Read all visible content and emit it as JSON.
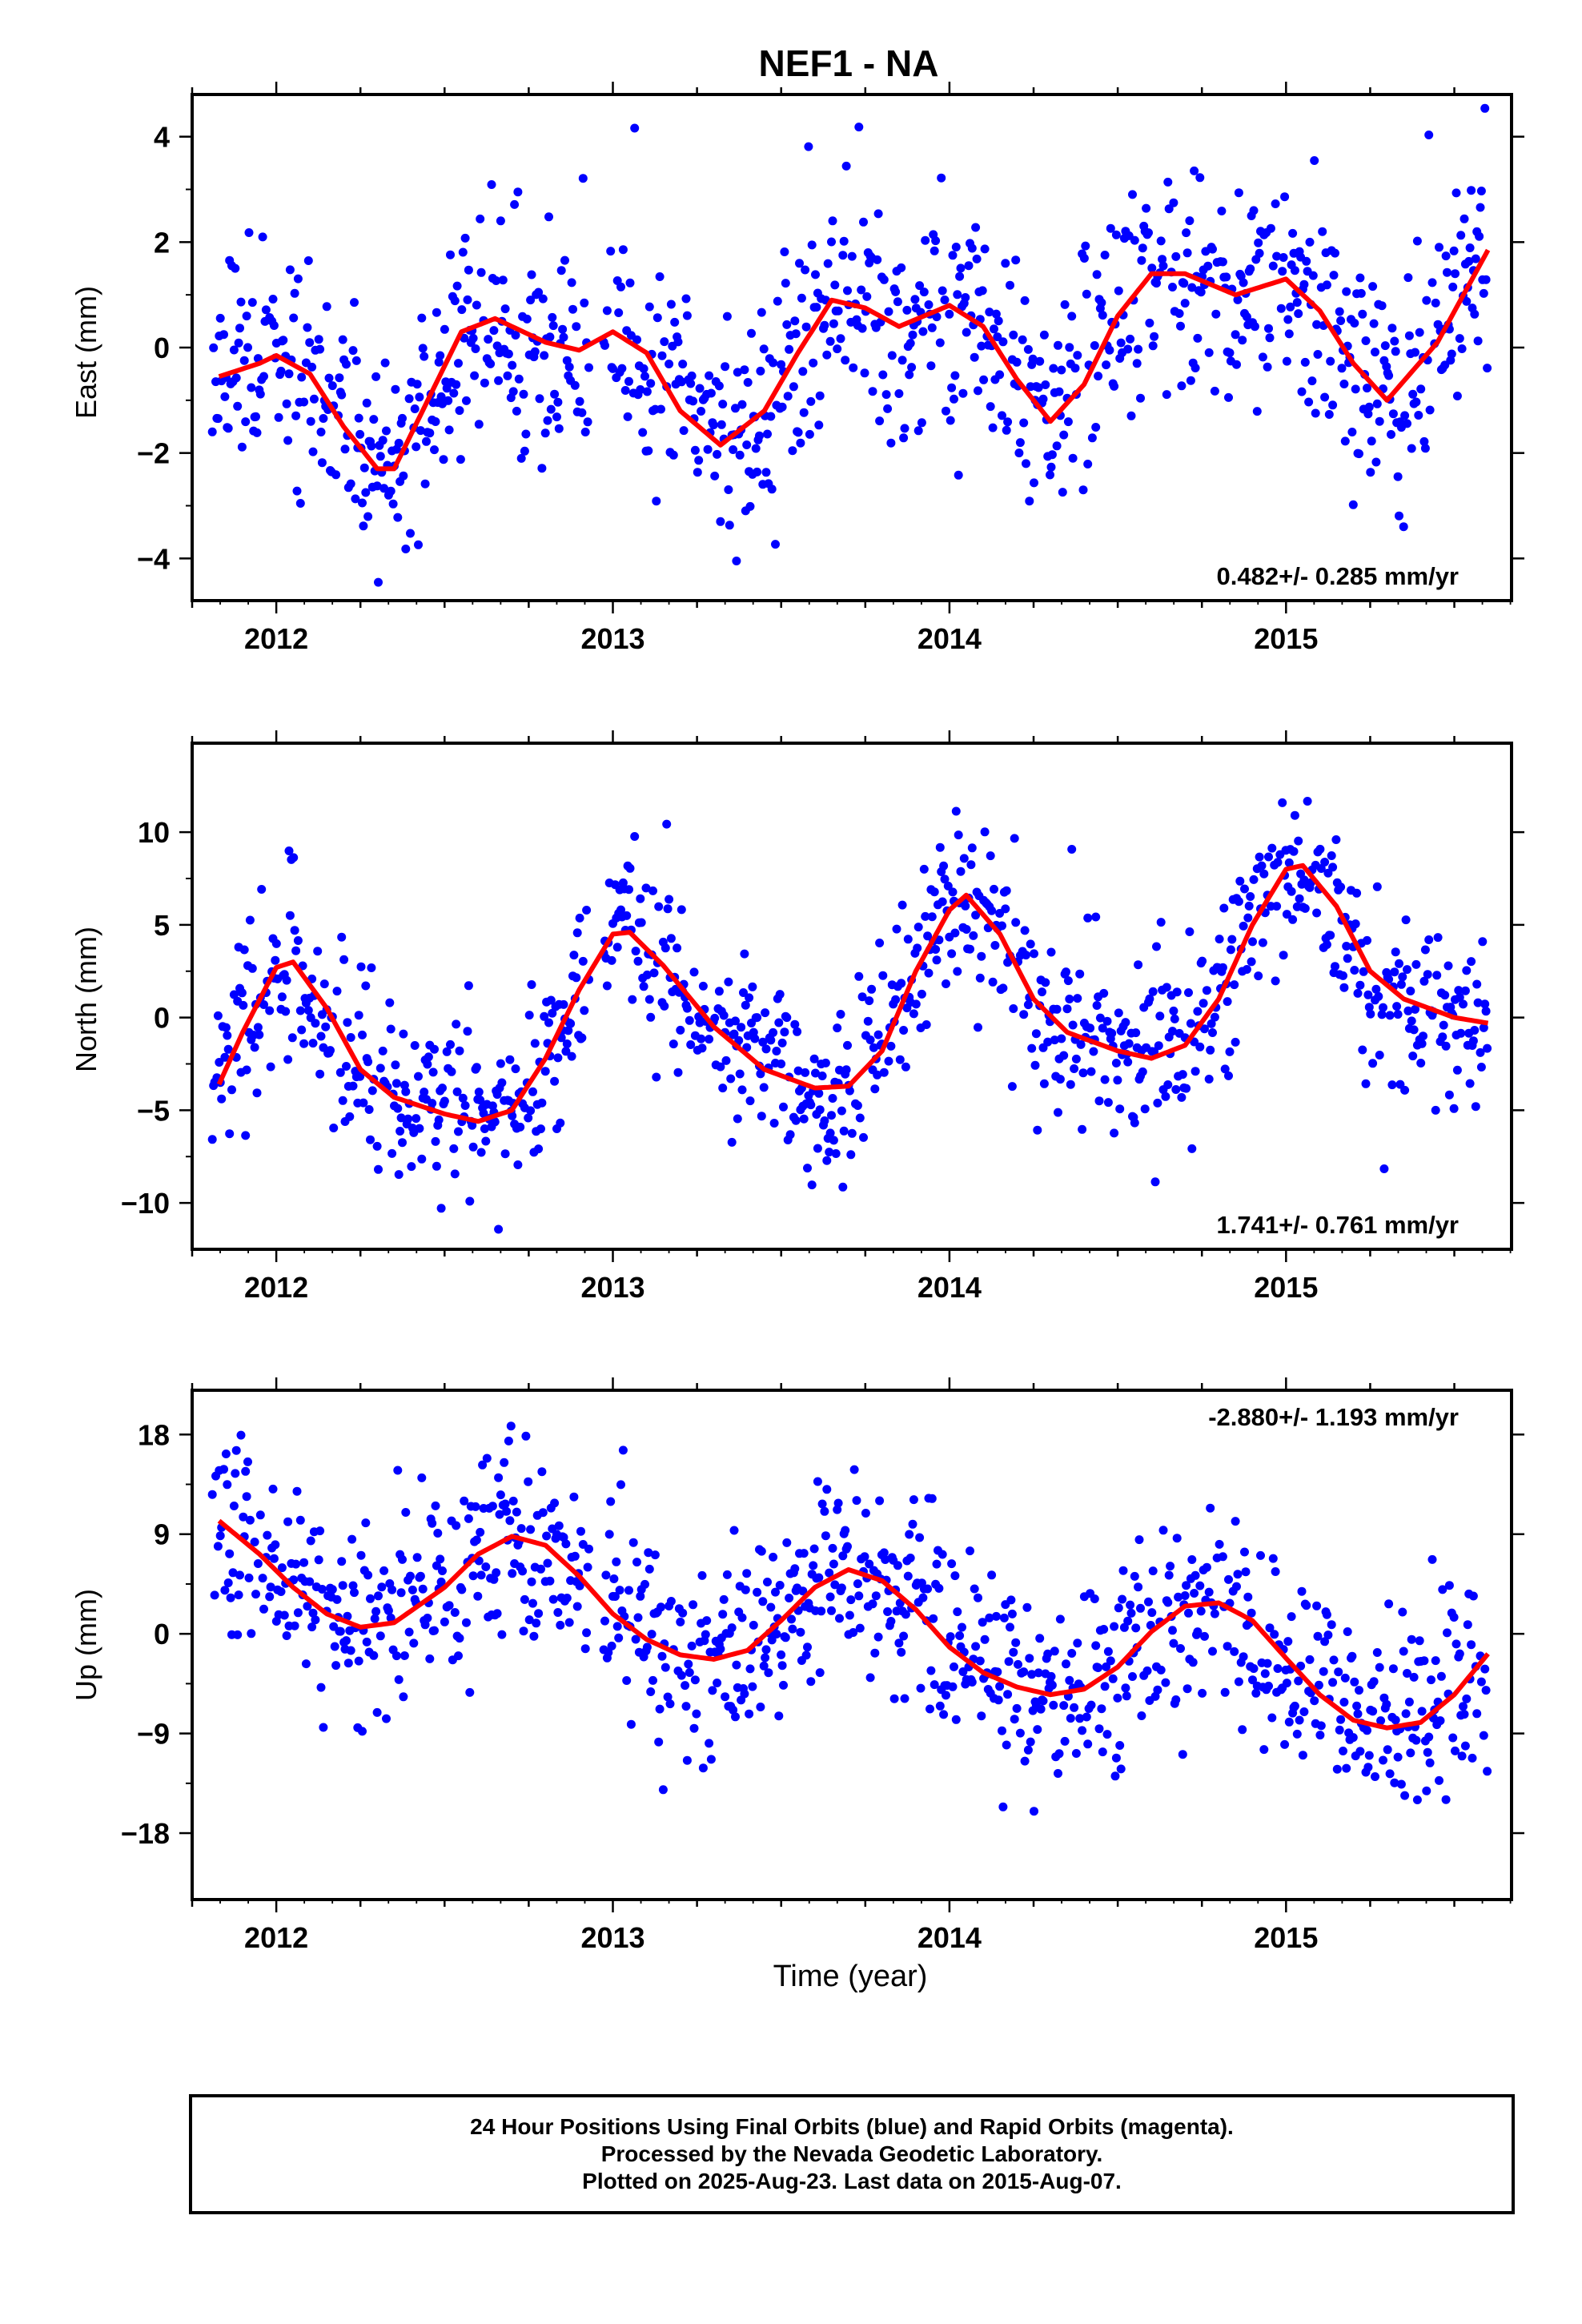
{
  "title": "NEF1 - NA",
  "xlabel": "Time (year)",
  "footer": {
    "line1": "24 Hour Positions Using Final Orbits (blue) and Rapid Orbits (magenta).",
    "line2": "Processed by the Nevada Geodetic Laboratory.",
    "line3": "Plotted on 2025-Aug-23. Last data on 2015-Aug-07."
  },
  "colors": {
    "points": "#0000ff",
    "model": "#ff0000",
    "frame": "#000000"
  },
  "chart_data": [
    {
      "type": "scatter",
      "name": "east",
      "ylabel": "East (mm)",
      "rate_label": "0.482+/- 0.285 mm/yr",
      "xlim": [
        2011.75,
        2015.67
      ],
      "ylim": [
        -4.8,
        4.8
      ],
      "xticks": [
        "2012",
        "2013",
        "2014",
        "2015"
      ],
      "yticks": [
        "4",
        "2",
        "0",
        "−2",
        "−4"
      ],
      "ytick_values": [
        4,
        2,
        0,
        -2,
        -4
      ],
      "trend_rate": 0.482,
      "model_curve": {
        "x": [
          2011.83,
          2011.95,
          2012.0,
          2012.1,
          2012.2,
          2012.3,
          2012.35,
          2012.45,
          2012.55,
          2012.65,
          2012.8,
          2012.9,
          2013.0,
          2013.1,
          2013.2,
          2013.32,
          2013.45,
          2013.55,
          2013.65,
          2013.75,
          2013.85,
          2014.0,
          2014.1,
          2014.2,
          2014.3,
          2014.4,
          2014.5,
          2014.6,
          2014.7,
          2014.85,
          2015.0,
          2015.1,
          2015.2,
          2015.3,
          2015.45,
          2015.6
        ],
        "y": [
          -0.55,
          -0.3,
          -0.15,
          -0.5,
          -1.5,
          -2.3,
          -2.3,
          -1.0,
          0.3,
          0.55,
          0.1,
          -0.05,
          0.3,
          -0.1,
          -1.2,
          -1.85,
          -1.2,
          -0.1,
          0.9,
          0.75,
          0.4,
          0.8,
          0.4,
          -0.6,
          -1.4,
          -0.7,
          0.6,
          1.4,
          1.4,
          1.0,
          1.3,
          0.7,
          -0.3,
          -1.0,
          0.1,
          1.85
        ]
      },
      "points_note": "about 1100 daily solutions, scatter roughly ±1.1 mm about the model"
    },
    {
      "type": "scatter",
      "name": "north",
      "ylabel": "North (mm)",
      "rate_label": "1.741+/- 0.761 mm/yr",
      "xlim": [
        2011.75,
        2015.67
      ],
      "ylim": [
        -12.5,
        14.8
      ],
      "xticks": [
        "2012",
        "2013",
        "2014",
        "2015"
      ],
      "yticks": [
        "10",
        "5",
        "0",
        "−5",
        "−10"
      ],
      "ytick_values": [
        10,
        5,
        0,
        -5,
        -10
      ],
      "trend_rate": 1.741,
      "model_curve": {
        "x": [
          2011.83,
          2011.9,
          2012.0,
          2012.05,
          2012.15,
          2012.25,
          2012.35,
          2012.5,
          2012.6,
          2012.7,
          2012.8,
          2012.9,
          2013.0,
          2013.05,
          2013.15,
          2013.3,
          2013.45,
          2013.6,
          2013.7,
          2013.8,
          2013.9,
          2014.0,
          2014.05,
          2014.15,
          2014.25,
          2014.35,
          2014.5,
          2014.6,
          2014.7,
          2014.8,
          2014.9,
          2015.0,
          2015.05,
          2015.15,
          2015.25,
          2015.35,
          2015.5,
          2015.6
        ],
        "y": [
          -3.6,
          -0.8,
          2.7,
          3.0,
          0.5,
          -2.8,
          -4.3,
          -5.2,
          -5.6,
          -5.0,
          -2.2,
          1.5,
          4.5,
          4.6,
          2.8,
          -0.5,
          -2.8,
          -3.8,
          -3.7,
          -1.8,
          2.5,
          5.8,
          6.6,
          4.5,
          1.0,
          -0.8,
          -1.8,
          -2.2,
          -1.5,
          1.0,
          5.0,
          8.0,
          8.2,
          6.0,
          2.5,
          1.0,
          0.0,
          -0.3
        ]
      },
      "points_note": "about 1100 daily solutions, scatter roughly ±2.3 mm about the model"
    },
    {
      "type": "scatter",
      "name": "up",
      "ylabel": "Up (mm)",
      "rate_label": "-2.880+/- 1.193 mm/yr",
      "xlim": [
        2011.75,
        2015.67
      ],
      "ylim": [
        -24,
        22
      ],
      "xticks": [
        "2012",
        "2013",
        "2014",
        "2015"
      ],
      "yticks": [
        "18",
        "9",
        "0",
        "−9",
        "−18"
      ],
      "ytick_values": [
        18,
        9,
        0,
        -9,
        -18
      ],
      "trend_rate": -2.88,
      "model_curve": {
        "x": [
          2011.83,
          2011.95,
          2012.05,
          2012.15,
          2012.25,
          2012.35,
          2012.5,
          2012.6,
          2012.7,
          2012.8,
          2012.9,
          2013.0,
          2013.1,
          2013.2,
          2013.3,
          2013.4,
          2013.5,
          2013.6,
          2013.7,
          2013.8,
          2013.9,
          2014.0,
          2014.1,
          2014.2,
          2014.3,
          2014.4,
          2014.5,
          2014.6,
          2014.7,
          2014.8,
          2014.9,
          2015.0,
          2015.1,
          2015.2,
          2015.3,
          2015.4,
          2015.5,
          2015.6
        ],
        "y": [
          10.2,
          7.2,
          4.2,
          1.8,
          0.6,
          1.0,
          4.2,
          7.2,
          8.8,
          8.0,
          5.2,
          1.8,
          -0.5,
          -1.9,
          -2.3,
          -1.5,
          1.2,
          4.2,
          5.8,
          4.8,
          2.2,
          -1.2,
          -3.5,
          -4.8,
          -5.5,
          -5.0,
          -3.0,
          0.2,
          2.5,
          2.8,
          1.2,
          -2.2,
          -5.5,
          -7.8,
          -8.5,
          -8.0,
          -5.5,
          -1.8
        ]
      },
      "points_note": "about 1100 daily solutions, scatter roughly ±4.4 mm about the model"
    }
  ]
}
